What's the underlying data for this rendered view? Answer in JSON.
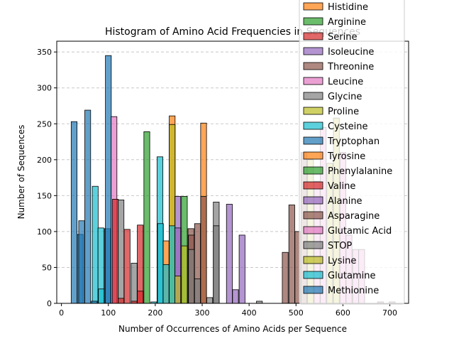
{
  "chart_data": {
    "type": "bar",
    "title": "Histogram of Amino Acid Frequencies in Sequences",
    "xlabel": "Number of Occurrences of Amino Acids per Sequence",
    "ylabel": "Number of Sequences",
    "xlim": [
      -10,
      740
    ],
    "ylim": [
      0,
      365
    ],
    "xticks": [
      0,
      100,
      200,
      300,
      400,
      500,
      600,
      700
    ],
    "yticks": [
      0,
      50,
      100,
      150,
      200,
      250,
      300,
      350
    ],
    "grid": "y-dashed",
    "legend_position": "upper right",
    "bin_width": 12.5,
    "colors": {
      "blue": "#1f77b4",
      "orange": "#ff7f0e",
      "green": "#2ca02c",
      "red": "#d62728",
      "purple": "#9467bd",
      "brown": "#8c564b",
      "pink": "#e377c2",
      "gray": "#7f7f7f",
      "olive": "#bcbd22",
      "cyan": "#17becf"
    },
    "legend": [
      {
        "name": "Histidine",
        "color": "#ff7f0e"
      },
      {
        "name": "Arginine",
        "color": "#2ca02c"
      },
      {
        "name": "Serine",
        "color": "#d62728"
      },
      {
        "name": "Isoleucine",
        "color": "#9467bd"
      },
      {
        "name": "Threonine",
        "color": "#8c564b"
      },
      {
        "name": "Leucine",
        "color": "#e377c2"
      },
      {
        "name": "Glycine",
        "color": "#7f7f7f"
      },
      {
        "name": "Proline",
        "color": "#bcbd22"
      },
      {
        "name": "Cysteine",
        "color": "#17becf"
      },
      {
        "name": "Tryptophan",
        "color": "#1f77b4"
      },
      {
        "name": "Tyrosine",
        "color": "#ff7f0e"
      },
      {
        "name": "Phenylalanine",
        "color": "#2ca02c"
      },
      {
        "name": "Valine",
        "color": "#d62728"
      },
      {
        "name": "Alanine",
        "color": "#9467bd"
      },
      {
        "name": "Asparagine",
        "color": "#8c564b"
      },
      {
        "name": "Glutamic Acid",
        "color": "#e377c2"
      },
      {
        "name": "STOP",
        "color": "#7f7f7f"
      },
      {
        "name": "Lysine",
        "color": "#bcbd22"
      },
      {
        "name": "Glutamine",
        "color": "#17becf"
      },
      {
        "name": "Methionine",
        "color": "#1f77b4"
      }
    ],
    "bars": [
      {
        "x": 27,
        "y": 253,
        "color": "#1f77b4"
      },
      {
        "x": 40,
        "y": 96,
        "color": "#1f77b4"
      },
      {
        "x": 43,
        "y": 115,
        "color": "#1f77b4"
      },
      {
        "x": 56,
        "y": 269,
        "color": "#1f77b4"
      },
      {
        "x": 72,
        "y": 163,
        "color": "#17becf"
      },
      {
        "x": 70,
        "y": 3,
        "color": "#1f77b4"
      },
      {
        "x": 84,
        "y": 105,
        "color": "#17becf"
      },
      {
        "x": 85,
        "y": 20,
        "color": "#17becf"
      },
      {
        "x": 98,
        "y": 104,
        "color": "#1f77b4"
      },
      {
        "x": 100,
        "y": 345,
        "color": "#1f77b4"
      },
      {
        "x": 112,
        "y": 260,
        "color": "#e377c2"
      },
      {
        "x": 115,
        "y": 145,
        "color": "#d62728"
      },
      {
        "x": 127,
        "y": 144,
        "color": "#7f7f7f"
      },
      {
        "x": 127,
        "y": 7,
        "color": "#d62728"
      },
      {
        "x": 140,
        "y": 103,
        "color": "#d62728"
      },
      {
        "x": 155,
        "y": 56,
        "color": "#7f7f7f"
      },
      {
        "x": 155,
        "y": 3,
        "color": "#d62728"
      },
      {
        "x": 168,
        "y": 109,
        "color": "#d62728"
      },
      {
        "x": 168,
        "y": 17,
        "color": "#d62728"
      },
      {
        "x": 182,
        "y": 239,
        "color": "#2ca02c"
      },
      {
        "x": 197,
        "y": 2,
        "color": "#17becf"
      },
      {
        "x": 210,
        "y": 204,
        "color": "#17becf"
      },
      {
        "x": 211,
        "y": 111,
        "color": "#17becf"
      },
      {
        "x": 223,
        "y": 87,
        "color": "#ff7f0e"
      },
      {
        "x": 223,
        "y": 54,
        "color": "#17becf"
      },
      {
        "x": 236,
        "y": 261,
        "color": "#ff7f0e"
      },
      {
        "x": 236,
        "y": 249,
        "color": "#bcbd22"
      },
      {
        "x": 236,
        "y": 108,
        "color": "#17becf"
      },
      {
        "x": 248,
        "y": 149,
        "color": "#9467bd"
      },
      {
        "x": 248,
        "y": 105,
        "color": "#9467bd"
      },
      {
        "x": 248,
        "y": 38,
        "color": "#bcbd22"
      },
      {
        "x": 262,
        "y": 149,
        "color": "#2ca02c"
      },
      {
        "x": 262,
        "y": 80,
        "color": "#bcbd22"
      },
      {
        "x": 276,
        "y": 104,
        "color": "#8c564b"
      },
      {
        "x": 277,
        "y": 95,
        "color": "#8c564b"
      },
      {
        "x": 277,
        "y": 75,
        "color": "#7f7f7f"
      },
      {
        "x": 290,
        "y": 111,
        "color": "#8c564b"
      },
      {
        "x": 290,
        "y": 34,
        "color": "#7f7f7f"
      },
      {
        "x": 303,
        "y": 251,
        "color": "#ff7f0e"
      },
      {
        "x": 303,
        "y": 149,
        "color": "#8c564b"
      },
      {
        "x": 316,
        "y": 8,
        "color": "#7f7f7f"
      },
      {
        "x": 330,
        "y": 141,
        "color": "#7f7f7f"
      },
      {
        "x": 330,
        "y": 108,
        "color": "#7f7f7f"
      },
      {
        "x": 358,
        "y": 138,
        "color": "#9467bd"
      },
      {
        "x": 371,
        "y": 19,
        "color": "#9467bd"
      },
      {
        "x": 385,
        "y": 95,
        "color": "#9467bd"
      },
      {
        "x": 422,
        "y": 3,
        "color": "#7f7f7f"
      },
      {
        "x": 477,
        "y": 71,
        "color": "#8c564b"
      },
      {
        "x": 491,
        "y": 137,
        "color": "#8c564b"
      },
      {
        "x": 504,
        "y": 100,
        "color": "#8c564b"
      },
      {
        "x": 517,
        "y": 210,
        "color": "#8c564b"
      },
      {
        "x": 531,
        "y": 200,
        "color": "#bcbd22"
      },
      {
        "x": 545,
        "y": 170,
        "color": "#e377c2"
      },
      {
        "x": 558,
        "y": 245,
        "color": "#e377c2"
      },
      {
        "x": 572,
        "y": 195,
        "color": "#bcbd22"
      },
      {
        "x": 586,
        "y": 258,
        "color": "#bcbd22"
      },
      {
        "x": 600,
        "y": 210,
        "color": "#e377c2"
      },
      {
        "x": 613,
        "y": 95,
        "color": "#e377c2"
      },
      {
        "x": 627,
        "y": 75,
        "color": "#e377c2"
      },
      {
        "x": 640,
        "y": 75,
        "color": "#e377c2"
      },
      {
        "x": 680,
        "y": 2,
        "color": "#8c564b"
      },
      {
        "x": 705,
        "y": 2,
        "color": "#8c564b"
      }
    ]
  }
}
